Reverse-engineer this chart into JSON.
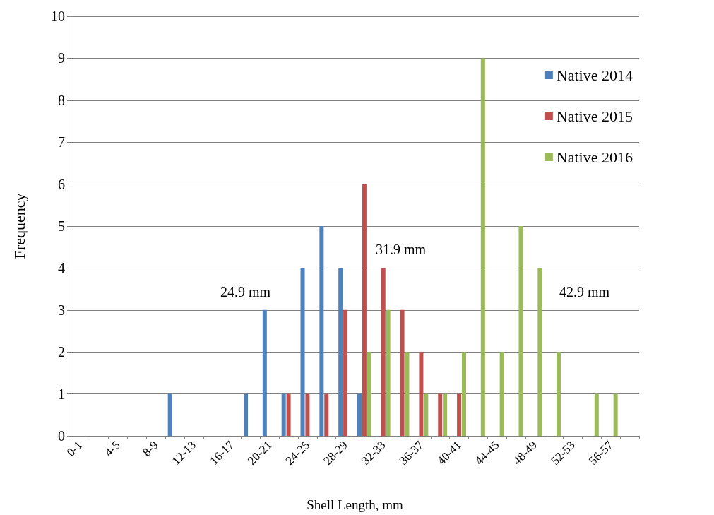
{
  "chart_data": {
    "type": "bar",
    "xlabel": "Shell Length, mm",
    "ylabel": "Frequency",
    "categories": [
      "0-1",
      null,
      "4-5",
      null,
      "8-9",
      null,
      "12-13",
      null,
      "16-17",
      null,
      "20-21",
      null,
      "24-25",
      null,
      "28-29",
      null,
      "32-33",
      null,
      "36-37",
      null,
      "40-41",
      null,
      "44-45",
      null,
      "48-49",
      null,
      "52-53",
      null,
      "56-57",
      null
    ],
    "series": [
      {
        "name": "Native 2014",
        "color": "#4f81bd",
        "values": [
          0,
          0,
          0,
          0,
          0,
          1,
          0,
          0,
          0,
          1,
          3,
          1,
          4,
          5,
          4,
          1,
          0,
          0,
          0,
          0,
          0,
          0,
          0,
          0,
          0,
          0,
          0,
          0,
          0,
          0
        ]
      },
      {
        "name": "Native 2015",
        "color": "#c0504d",
        "values": [
          0,
          0,
          0,
          0,
          0,
          0,
          0,
          0,
          0,
          0,
          0,
          1,
          1,
          1,
          3,
          6,
          4,
          3,
          2,
          1,
          1,
          0,
          0,
          0,
          0,
          0,
          0,
          0,
          0,
          0
        ]
      },
      {
        "name": "Native 2016",
        "color": "#9bbb59",
        "values": [
          0,
          0,
          0,
          0,
          0,
          0,
          0,
          0,
          0,
          0,
          0,
          0,
          0,
          0,
          0,
          2,
          3,
          2,
          1,
          1,
          2,
          9,
          2,
          5,
          4,
          2,
          0,
          1,
          1,
          0
        ]
      }
    ],
    "ylim": [
      0,
      10
    ],
    "yticks": [
      0,
      1,
      2,
      3,
      4,
      5,
      6,
      7,
      8,
      9,
      10
    ],
    "grid": "y",
    "legend": "top right",
    "annotations": [
      "24.9 mm",
      "31.9 mm",
      "42.9 mm"
    ]
  }
}
